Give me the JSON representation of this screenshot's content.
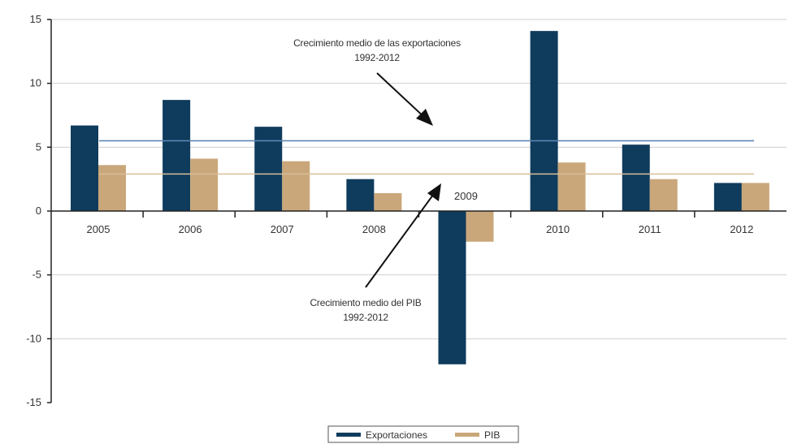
{
  "chart_data": {
    "type": "bar",
    "categories": [
      "2005",
      "2006",
      "2007",
      "2008",
      "2009",
      "2010",
      "2011",
      "2012"
    ],
    "series": [
      {
        "name": "Exportaciones",
        "color": "#0f3b5c",
        "values": [
          6.7,
          8.7,
          6.6,
          2.5,
          -12.0,
          14.1,
          5.2,
          2.2
        ]
      },
      {
        "name": "PIB",
        "color": "#c9a77a",
        "values": [
          3.6,
          4.1,
          3.9,
          1.4,
          -2.4,
          3.8,
          2.5,
          2.2
        ]
      }
    ],
    "reference_lines": [
      {
        "value": 5.5,
        "color": "#5b86b2",
        "label_lines": [
          "Crecimiento medio de las exportaciones",
          "1992-2012"
        ]
      },
      {
        "value": 2.9,
        "color": "#d9bf98",
        "label_lines": [
          "Crecimiento medio del PIB",
          "1992-2012"
        ]
      }
    ],
    "ylim": [
      -15,
      15
    ],
    "yticks": [
      "15",
      "10",
      "5",
      "0",
      "-5",
      "-10",
      "-15"
    ],
    "ytick_values": [
      15,
      10,
      5,
      0,
      -5,
      -10,
      -15
    ],
    "grid": true,
    "legend_position": "bottom-center",
    "title": "",
    "xlabel": "",
    "ylabel": ""
  }
}
